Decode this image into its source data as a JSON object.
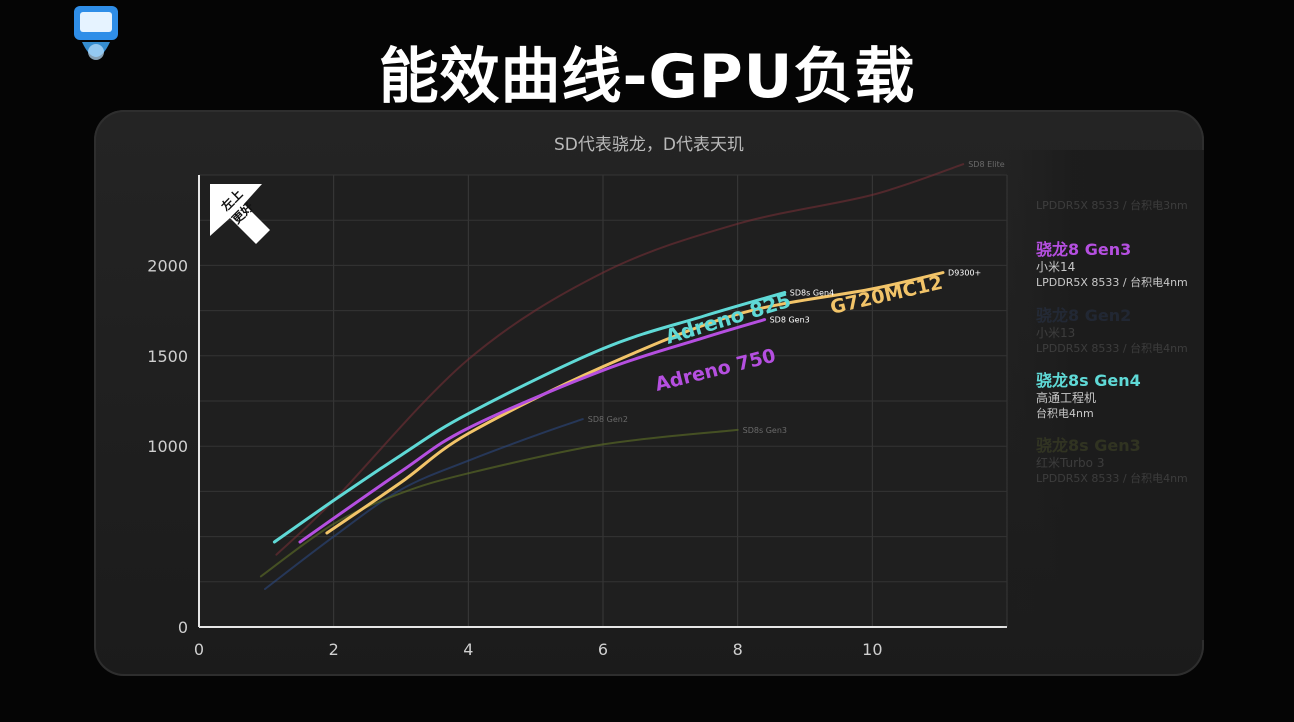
{
  "title": "能效曲线-GPU负载",
  "subtitle": "SD代表骁龙，D代表天玑",
  "badge": {
    "line1": "左上",
    "line2": "更好"
  },
  "legend": [
    {
      "name": "",
      "sub1": "",
      "sub2": "LPDDR5X 8533 / 台积电3nm",
      "color": "#c9c9c9",
      "dim": true
    },
    {
      "name": "骁龙8 Gen3",
      "sub1": "小米14",
      "sub2": "LPDDR5X 8533 / 台积电4nm",
      "color": "#b54fe0",
      "dim": false
    },
    {
      "name": "骁龙8 Gen2",
      "sub1": "小米13",
      "sub2": "LPDDR5X 8533 / 台积电4nm",
      "color": "#3c5d9e",
      "dim": true
    },
    {
      "name": "骁龙8s Gen4",
      "sub1": "高通工程机",
      "sub2": "台积电4nm",
      "color": "#5fd9d6",
      "dim": false
    },
    {
      "name": "骁龙8s Gen3",
      "sub1": "红米Turbo 3",
      "sub2": "LPDDR5X 8533 / 台积电4nm",
      "color": "#8a9a3c",
      "dim": true
    }
  ],
  "chart_data": {
    "type": "line",
    "title": "能效曲线-GPU负载",
    "subtitle": "SD代表骁龙，D代表天玑",
    "xlim": [
      0,
      12
    ],
    "ylim": [
      0,
      2500
    ],
    "x_ticks": [
      "0",
      "2",
      "4",
      "6",
      "8",
      "10"
    ],
    "y_ticks": [
      "0",
      "1000",
      "1500",
      "2000"
    ],
    "grid": true,
    "series": [
      {
        "name": "SD8 Elite",
        "color": "#7a2f37",
        "opacity": 0.55,
        "width": 2,
        "points": [
          [
            1.15,
            400
          ],
          [
            2,
            700
          ],
          [
            4,
            1480
          ],
          [
            6,
            1960
          ],
          [
            8,
            2230
          ],
          [
            10,
            2390
          ],
          [
            11.35,
            2560
          ]
        ]
      },
      {
        "name": "SD8 Gen2",
        "color": "#2c4a86",
        "opacity": 0.55,
        "width": 2,
        "points": [
          [
            0.98,
            210
          ],
          [
            2,
            500
          ],
          [
            3,
            760
          ],
          [
            4,
            920
          ],
          [
            5,
            1060
          ],
          [
            5.7,
            1150
          ]
        ]
      },
      {
        "name": "SD8s Gen3",
        "color": "#5b6b27",
        "opacity": 0.65,
        "width": 2,
        "points": [
          [
            0.92,
            280
          ],
          [
            2,
            570
          ],
          [
            3,
            740
          ],
          [
            4,
            850
          ],
          [
            6,
            1010
          ],
          [
            8,
            1090
          ]
        ]
      },
      {
        "name": "D9300+",
        "color": "#f2c469",
        "opacity": 1,
        "width": 3,
        "points": [
          [
            1.9,
            520
          ],
          [
            3,
            800
          ],
          [
            4,
            1070
          ],
          [
            6,
            1440
          ],
          [
            8,
            1730
          ],
          [
            10,
            1870
          ],
          [
            11.05,
            1960
          ]
        ]
      },
      {
        "name": "SD8 Gen3",
        "color": "#b54fe0",
        "opacity": 1,
        "width": 3,
        "points": [
          [
            1.5,
            470
          ],
          [
            3,
            860
          ],
          [
            4,
            1100
          ],
          [
            6,
            1420
          ],
          [
            7.5,
            1600
          ],
          [
            8.4,
            1700
          ]
        ]
      },
      {
        "name": "SD8s Gen4",
        "color": "#5fd9d6",
        "opacity": 1,
        "width": 3,
        "points": [
          [
            1.12,
            470
          ],
          [
            2,
            700
          ],
          [
            3,
            950
          ],
          [
            4,
            1180
          ],
          [
            6,
            1540
          ],
          [
            7.5,
            1720
          ],
          [
            8.7,
            1850
          ]
        ]
      }
    ],
    "end_labels": [
      "SD8 Elite",
      "D9300+",
      "SD8s Gen4",
      "SD8 Gen3",
      "SD8 Gen2",
      "SD8s Gen3"
    ],
    "annotations": [
      {
        "text": "Adreno 825",
        "color": "#5fd9d6"
      },
      {
        "text": "G720MC12",
        "color": "#f2c469"
      },
      {
        "text": "Adreno 750",
        "color": "#b54fe0"
      }
    ]
  }
}
